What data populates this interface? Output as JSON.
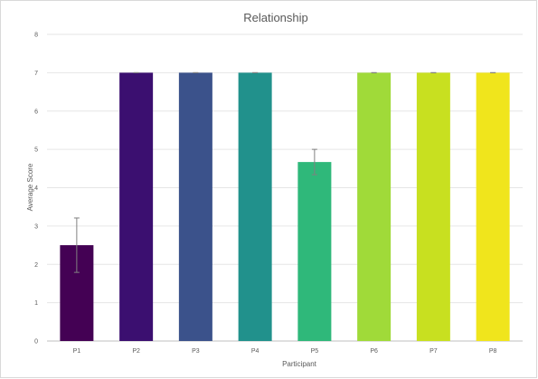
{
  "chart_data": {
    "type": "bar",
    "title": "Relationship",
    "xlabel": "Participant",
    "ylabel": "Average Score",
    "ylim": [
      0,
      8
    ],
    "yticks": [
      0,
      1,
      2,
      3,
      4,
      5,
      6,
      7,
      8
    ],
    "grid": true,
    "legend": "none",
    "categories": [
      "P1",
      "P2",
      "P3",
      "P4",
      "P5",
      "P6",
      "P7",
      "P8"
    ],
    "values": [
      2.5,
      7,
      7,
      7,
      4.67,
      7,
      7,
      7
    ],
    "error": [
      0.71,
      0,
      0,
      0,
      0.33,
      0,
      0,
      0
    ],
    "colors": [
      "#440154",
      "#3b0f70",
      "#3b528b",
      "#21918c",
      "#2fb87a",
      "#a0da39",
      "#c8e020",
      "#f0e51c"
    ]
  }
}
